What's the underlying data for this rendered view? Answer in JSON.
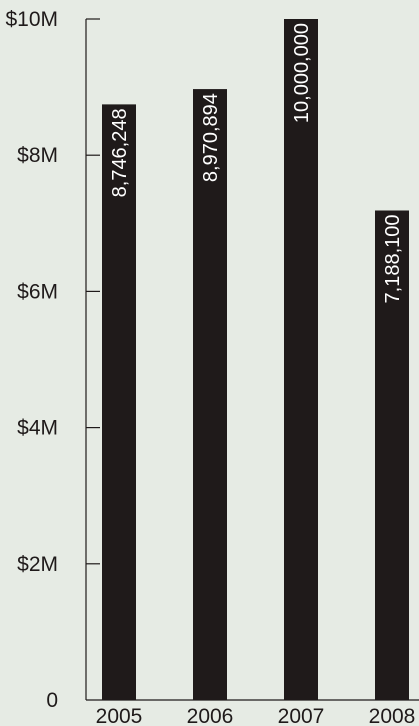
{
  "chart_data": {
    "type": "bar",
    "title": "",
    "xlabel": "",
    "ylabel": "",
    "categories": [
      "2005",
      "2006",
      "2007",
      "2008"
    ],
    "values": [
      8746248,
      8970894,
      10000000,
      7188100
    ],
    "data_labels": [
      "8,746,248",
      "8,970,894",
      "10,000,000",
      "7,188,100"
    ],
    "ylim": [
      0,
      10000000
    ],
    "yticks": [
      0,
      2000000,
      4000000,
      6000000,
      8000000,
      10000000
    ],
    "ytick_labels": [
      "0",
      "$2M",
      "$4M",
      "$6M",
      "$8M",
      "$10M"
    ],
    "grid": false,
    "legend": "none",
    "colors": {
      "background": "#e6ebe4",
      "bar": "#1f1a1a",
      "axis": "#1f1a1a",
      "data_label_text": "#ffffff"
    }
  }
}
